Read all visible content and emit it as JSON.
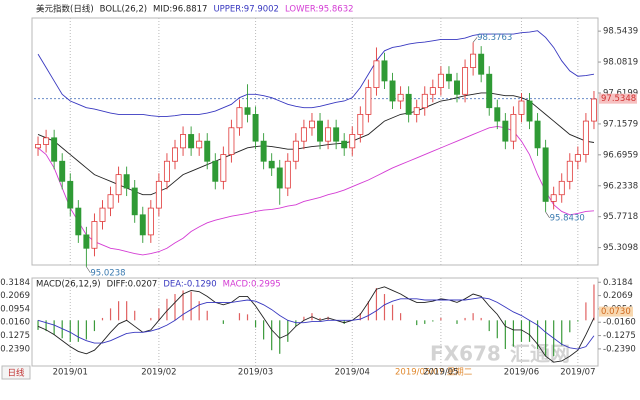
{
  "chart_data": [
    {
      "type": "candlestick",
      "title": "美元指数(日线)",
      "indicator": "BOLL(26,2)",
      "categories": [
        null,
        null,
        null,
        null,
        "2019/01",
        null,
        null,
        null,
        null,
        null,
        null,
        null,
        null,
        null,
        null,
        "2019/02",
        null,
        null,
        null,
        null,
        null,
        null,
        null,
        null,
        null,
        null,
        null,
        "2019/03",
        null,
        null,
        null,
        null,
        null,
        null,
        null,
        null,
        null,
        null,
        null,
        "2019/04",
        null,
        null,
        null,
        null,
        null,
        null,
        null,
        null,
        null,
        null,
        "2019/05",
        null,
        null,
        null,
        null,
        null,
        null,
        null,
        null,
        null,
        "2019/06",
        null,
        null,
        null,
        null,
        null,
        null,
        "2019/07",
        null,
        null
      ],
      "open": [
        96.8,
        96.85,
        96.95,
        96.6,
        96.3,
        95.9,
        95.5,
        95.3,
        95.7,
        95.9,
        96.1,
        96.4,
        96.2,
        95.8,
        95.5,
        95.9,
        96.3,
        96.6,
        96.8,
        97.0,
        96.8,
        96.9,
        96.6,
        96.3,
        96.7,
        97.1,
        97.4,
        97.3,
        96.9,
        96.6,
        96.5,
        96.2,
        96.6,
        96.9,
        97.1,
        97.2,
        96.9,
        97.1,
        96.9,
        96.8,
        97.0,
        97.3,
        97.7,
        98.1,
        97.8,
        97.5,
        97.6,
        97.3,
        97.4,
        97.6,
        97.7,
        97.9,
        97.8,
        97.6,
        98.0,
        98.2,
        97.9,
        97.4,
        97.2,
        96.9,
        97.3,
        97.5,
        97.2,
        96.8,
        96.0,
        96.1,
        96.3,
        96.6,
        96.7,
        97.2
      ],
      "high": [
        96.97,
        97.07,
        97.07,
        96.72,
        96.42,
        96.02,
        95.62,
        95.82,
        96.02,
        96.22,
        96.52,
        96.52,
        96.32,
        95.92,
        96.02,
        96.42,
        96.72,
        96.92,
        97.12,
        97.12,
        97.02,
        97.02,
        96.72,
        96.82,
        97.22,
        97.52,
        97.75,
        97.42,
        97.02,
        96.72,
        96.62,
        96.72,
        97.02,
        97.22,
        97.32,
        97.32,
        97.22,
        97.22,
        97.02,
        97.12,
        97.42,
        97.82,
        98.3,
        98.22,
        97.92,
        97.72,
        97.72,
        97.52,
        97.72,
        97.82,
        98.02,
        98.02,
        97.92,
        98.12,
        98.3763,
        98.32,
        98.02,
        97.52,
        97.32,
        97.42,
        97.62,
        97.62,
        97.32,
        96.92,
        96.22,
        96.42,
        96.72,
        96.82,
        97.32,
        97.65
      ],
      "low": [
        96.68,
        96.73,
        96.48,
        96.18,
        95.78,
        95.38,
        95.0238,
        95.18,
        95.58,
        95.78,
        95.98,
        96.08,
        95.68,
        95.38,
        95.38,
        95.78,
        96.18,
        96.48,
        96.68,
        96.68,
        96.68,
        96.48,
        96.18,
        96.18,
        96.58,
        96.98,
        97.18,
        96.78,
        96.48,
        96.38,
        95.95,
        96.08,
        96.48,
        96.78,
        96.98,
        96.78,
        96.78,
        96.78,
        96.68,
        96.68,
        96.88,
        97.18,
        97.58,
        97.68,
        97.38,
        97.38,
        97.18,
        97.18,
        97.28,
        97.48,
        97.58,
        97.68,
        97.48,
        97.48,
        97.88,
        97.78,
        97.28,
        97.08,
        96.78,
        96.78,
        97.18,
        97.08,
        96.68,
        95.843,
        95.88,
        95.98,
        96.18,
        96.48,
        96.58,
        97.08
      ],
      "close": [
        96.85,
        96.95,
        96.6,
        96.3,
        95.9,
        95.5,
        95.3,
        95.7,
        95.9,
        96.1,
        96.4,
        96.2,
        95.8,
        95.5,
        95.9,
        96.3,
        96.6,
        96.8,
        97.0,
        96.8,
        96.9,
        96.6,
        96.3,
        96.7,
        97.1,
        97.4,
        97.3,
        96.9,
        96.6,
        96.5,
        96.2,
        96.6,
        96.9,
        97.1,
        97.2,
        96.9,
        97.1,
        96.9,
        96.8,
        97.0,
        97.3,
        97.7,
        98.1,
        97.8,
        97.5,
        97.6,
        97.3,
        97.4,
        97.6,
        97.7,
        97.9,
        97.8,
        97.6,
        98.0,
        98.2,
        97.9,
        97.4,
        97.2,
        96.9,
        97.3,
        97.5,
        97.2,
        96.8,
        96.0,
        96.1,
        96.3,
        96.6,
        96.7,
        97.2,
        97.53
      ],
      "up_color": "#e03a3a",
      "down_color": "#2f9a35",
      "series": [
        {
          "name": "MID:96.8817",
          "color": "#222222",
          "values": [
            97.0,
            96.95,
            96.9,
            96.8,
            96.7,
            96.6,
            96.5,
            96.4,
            96.35,
            96.3,
            96.25,
            96.2,
            96.15,
            96.1,
            96.1,
            96.15,
            96.2,
            96.3,
            96.4,
            96.45,
            96.5,
            96.55,
            96.6,
            96.65,
            96.7,
            96.75,
            96.8,
            96.82,
            96.83,
            96.82,
            96.8,
            96.78,
            96.78,
            96.8,
            96.82,
            96.83,
            96.85,
            96.86,
            96.87,
            96.9,
            96.95,
            97.0,
            97.1,
            97.2,
            97.25,
            97.3,
            97.32,
            97.35,
            97.4,
            97.45,
            97.5,
            97.52,
            97.55,
            97.58,
            97.6,
            97.62,
            97.62,
            97.6,
            97.58,
            97.58,
            97.55,
            97.5,
            97.4,
            97.3,
            97.2,
            97.1,
            97.0,
            96.95,
            96.9,
            96.88
          ]
        },
        {
          "name": "UPPER:97.9002",
          "color": "#3838c0",
          "values": [
            98.2,
            98.0,
            97.8,
            97.6,
            97.5,
            97.45,
            97.4,
            97.38,
            97.35,
            97.32,
            97.3,
            97.3,
            97.3,
            97.3,
            97.28,
            97.27,
            97.27,
            97.28,
            97.3,
            97.3,
            97.3,
            97.32,
            97.35,
            97.4,
            97.45,
            97.55,
            97.6,
            97.6,
            97.58,
            97.55,
            97.5,
            97.45,
            97.42,
            97.4,
            97.4,
            97.42,
            97.45,
            97.48,
            97.5,
            97.55,
            97.7,
            97.9,
            98.1,
            98.25,
            98.3,
            98.32,
            98.35,
            98.37,
            98.38,
            98.4,
            98.42,
            98.42,
            98.42,
            98.44,
            98.48,
            98.5,
            98.5,
            98.5,
            98.5,
            98.5,
            98.52,
            98.53,
            98.55,
            98.45,
            98.3,
            98.1,
            97.95,
            97.87,
            97.88,
            97.9
          ]
        },
        {
          "name": "LOWER:95.8632",
          "color": "#d43cd4",
          "values": [
            96.8,
            96.7,
            96.5,
            96.2,
            95.9,
            95.7,
            95.5,
            95.4,
            95.35,
            95.3,
            95.28,
            95.25,
            95.22,
            95.2,
            95.22,
            95.25,
            95.3,
            95.38,
            95.45,
            95.55,
            95.62,
            95.68,
            95.72,
            95.75,
            95.78,
            95.8,
            95.82,
            95.85,
            95.87,
            95.88,
            95.9,
            95.93,
            95.95,
            96.0,
            96.03,
            96.06,
            96.1,
            96.13,
            96.17,
            96.22,
            96.27,
            96.32,
            96.38,
            96.44,
            96.5,
            96.55,
            96.6,
            96.65,
            96.7,
            96.75,
            96.8,
            96.85,
            96.9,
            96.95,
            97.0,
            97.05,
            97.1,
            97.12,
            97.1,
            97.05,
            96.9,
            96.7,
            96.4,
            96.15,
            95.95,
            95.85,
            95.8,
            95.82,
            95.85,
            95.86
          ]
        }
      ],
      "last_price": 97.5348,
      "annotations": [
        98.3763,
        95.0238,
        {
          "value": 95.843,
          "label": "95.8430"
        }
      ],
      "ylim": [
        95.05,
        98.74
      ],
      "yticks": [
        98.5439,
        98.0819,
        97.6199,
        97.1579,
        96.6959,
        96.2338,
        95.7718,
        95.3098
      ],
      "xgrid": true
    },
    {
      "type": "macd",
      "title": "MACD(26,12,9)",
      "series": [
        {
          "name": "DIFF:0.0207",
          "color": "#222222",
          "values": [
            -0.05,
            -0.08,
            -0.12,
            -0.17,
            -0.22,
            -0.26,
            -0.28,
            -0.25,
            -0.18,
            -0.1,
            -0.03,
            0.0,
            -0.05,
            -0.1,
            -0.08,
            0.0,
            0.08,
            0.15,
            0.22,
            0.25,
            0.24,
            0.2,
            0.15,
            0.13,
            0.15,
            0.2,
            0.2,
            0.12,
            0.02,
            -0.08,
            -0.15,
            -0.12,
            -0.05,
            0.0,
            0.03,
            0.0,
            0.02,
            0.0,
            -0.02,
            0.0,
            0.05,
            0.15,
            0.26,
            0.28,
            0.25,
            0.22,
            0.18,
            0.15,
            0.15,
            0.16,
            0.18,
            0.17,
            0.15,
            0.18,
            0.22,
            0.2,
            0.12,
            0.05,
            -0.05,
            -0.08,
            -0.08,
            -0.12,
            -0.2,
            -0.3,
            -0.35,
            -0.34,
            -0.3,
            -0.25,
            -0.12,
            0.0207
          ]
        },
        {
          "name": "DEA:-0.1290",
          "color": "#3838c0",
          "values": [
            0.0,
            -0.02,
            -0.04,
            -0.07,
            -0.1,
            -0.14,
            -0.17,
            -0.19,
            -0.19,
            -0.17,
            -0.14,
            -0.11,
            -0.1,
            -0.1,
            -0.09,
            -0.07,
            -0.04,
            0.0,
            0.05,
            0.09,
            0.13,
            0.15,
            0.15,
            0.15,
            0.15,
            0.16,
            0.17,
            0.16,
            0.13,
            0.09,
            0.04,
            0.0,
            -0.02,
            -0.02,
            -0.01,
            -0.01,
            0.0,
            0.0,
            0.0,
            0.0,
            0.01,
            0.04,
            0.08,
            0.13,
            0.16,
            0.18,
            0.18,
            0.18,
            0.17,
            0.17,
            0.17,
            0.17,
            0.17,
            0.17,
            0.18,
            0.19,
            0.18,
            0.15,
            0.11,
            0.07,
            0.04,
            0.0,
            -0.04,
            -0.1,
            -0.15,
            -0.2,
            -0.23,
            -0.24,
            -0.22,
            -0.129
          ]
        }
      ],
      "histogram": {
        "name": "MACD:0.2995",
        "color": "#d43cd4",
        "up_color": "#e06060",
        "down_color": "#3a9a3a",
        "values": [
          -0.08,
          -0.09,
          -0.12,
          -0.15,
          -0.18,
          -0.18,
          -0.16,
          -0.09,
          0.02,
          0.1,
          0.16,
          0.16,
          0.08,
          0.0,
          0.02,
          0.1,
          0.18,
          0.22,
          0.25,
          0.24,
          0.16,
          0.08,
          0.0,
          -0.03,
          0.0,
          0.06,
          0.05,
          -0.06,
          -0.16,
          -0.25,
          -0.28,
          -0.18,
          -0.05,
          0.03,
          0.06,
          0.02,
          0.03,
          0.0,
          -0.03,
          0.0,
          0.06,
          0.16,
          0.27,
          0.22,
          0.13,
          0.06,
          0.0,
          -0.04,
          -0.03,
          -0.01,
          0.02,
          0.0,
          -0.03,
          0.02,
          0.06,
          0.02,
          -0.09,
          -0.15,
          -0.24,
          -0.22,
          -0.18,
          -0.18,
          -0.24,
          -0.3,
          -0.3,
          -0.21,
          -0.1,
          -0.01,
          0.15,
          0.2995
        ]
      },
      "last_value": {
        "value": 0.073,
        "label": "0.0730"
      },
      "ylim": [
        -0.382,
        0.354
      ],
      "yticks": [
        0.3184,
        0.2069,
        0.0954,
        {
          "value": -0.016,
          "label": "-0.0160"
        },
        -0.1275,
        {
          "value": -0.239,
          "label": "-0.2390"
        }
      ]
    }
  ],
  "period_button": "日线",
  "cursor_label": "2019/05/07 星期二",
  "watermark": [
    "FX678",
    "汇通网"
  ]
}
